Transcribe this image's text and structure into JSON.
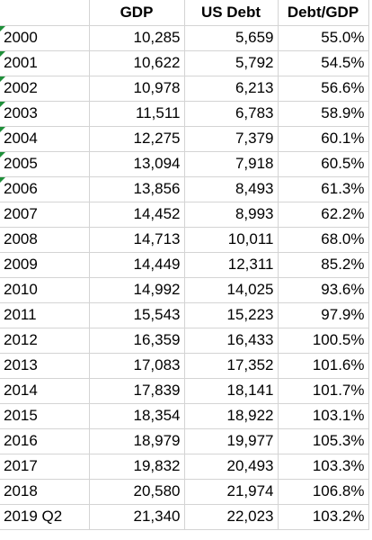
{
  "headers": [
    "",
    "GDP",
    "US Debt",
    "Debt/GDP"
  ],
  "rows": [
    {
      "year": "2000",
      "gdp": "10,285",
      "debt": "5,659",
      "ratio": "55.0%",
      "flag": true
    },
    {
      "year": "2001",
      "gdp": "10,622",
      "debt": "5,792",
      "ratio": "54.5%",
      "flag": true
    },
    {
      "year": "2002",
      "gdp": "10,978",
      "debt": "6,213",
      "ratio": "56.6%",
      "flag": true
    },
    {
      "year": "2003",
      "gdp": "11,511",
      "debt": "6,783",
      "ratio": "58.9%",
      "flag": true
    },
    {
      "year": "2004",
      "gdp": "12,275",
      "debt": "7,379",
      "ratio": "60.1%",
      "flag": true
    },
    {
      "year": "2005",
      "gdp": "13,094",
      "debt": "7,918",
      "ratio": "60.5%",
      "flag": true
    },
    {
      "year": "2006",
      "gdp": "13,856",
      "debt": "8,493",
      "ratio": "61.3%",
      "flag": true
    },
    {
      "year": "2007",
      "gdp": "14,452",
      "debt": "8,993",
      "ratio": "62.2%",
      "flag": false
    },
    {
      "year": "2008",
      "gdp": "14,713",
      "debt": "10,011",
      "ratio": "68.0%",
      "flag": false
    },
    {
      "year": "2009",
      "gdp": "14,449",
      "debt": "12,311",
      "ratio": "85.2%",
      "flag": false
    },
    {
      "year": "2010",
      "gdp": "14,992",
      "debt": "14,025",
      "ratio": "93.6%",
      "flag": false
    },
    {
      "year": "2011",
      "gdp": "15,543",
      "debt": "15,223",
      "ratio": "97.9%",
      "flag": false
    },
    {
      "year": "2012",
      "gdp": "16,359",
      "debt": "16,433",
      "ratio": "100.5%",
      "flag": false
    },
    {
      "year": "2013",
      "gdp": "17,083",
      "debt": "17,352",
      "ratio": "101.6%",
      "flag": false
    },
    {
      "year": "2014",
      "gdp": "17,839",
      "debt": "18,141",
      "ratio": "101.7%",
      "flag": false
    },
    {
      "year": "2015",
      "gdp": "18,354",
      "debt": "18,922",
      "ratio": "103.1%",
      "flag": false
    },
    {
      "year": "2016",
      "gdp": "18,979",
      "debt": "19,977",
      "ratio": "105.3%",
      "flag": false
    },
    {
      "year": "2017",
      "gdp": "19,832",
      "debt": "20,493",
      "ratio": "103.3%",
      "flag": false
    },
    {
      "year": "2018",
      "gdp": "20,580",
      "debt": "21,974",
      "ratio": "106.8%",
      "flag": false
    },
    {
      "year": "2019 Q2",
      "gdp": "21,340",
      "debt": "22,023",
      "ratio": "103.2%",
      "flag": false
    }
  ],
  "colors": {
    "flag": "#1f8f3a",
    "gridline": "#d4d4d4"
  }
}
